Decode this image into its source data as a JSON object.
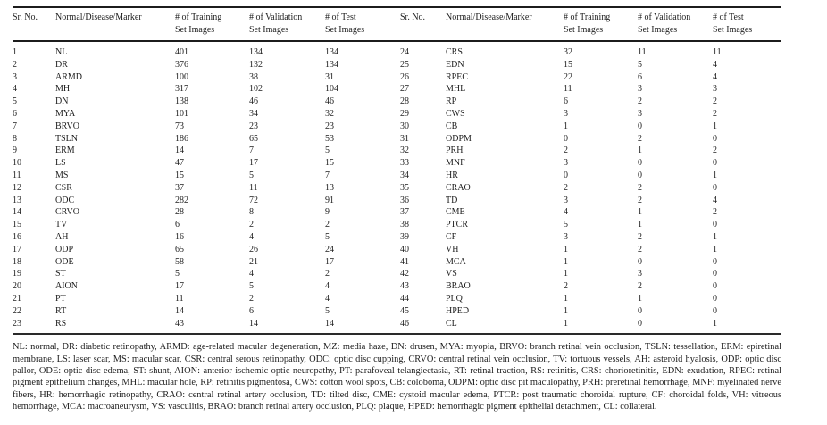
{
  "page": {
    "background_color": "#ffffff",
    "text_color": "#1e1e1e",
    "rule_color": "#1c1c1c"
  },
  "table": {
    "header": {
      "sr": "Sr. No.",
      "marker": "Normal/Disease/Marker",
      "train_line1": "# of Training",
      "train_line2": "Set Images",
      "val_line1": "# of Validation",
      "val_line2": "Set Images",
      "test_line1": "# of Test",
      "test_line2": "Set Images"
    },
    "left_rows": [
      [
        "1",
        "NL",
        "401",
        "134",
        "134"
      ],
      [
        "2",
        "DR",
        "376",
        "132",
        "134"
      ],
      [
        "3",
        "ARMD",
        "100",
        "38",
        "31"
      ],
      [
        "4",
        "MH",
        "317",
        "102",
        "104"
      ],
      [
        "5",
        "DN",
        "138",
        "46",
        "46"
      ],
      [
        "6",
        "MYA",
        "101",
        "34",
        "32"
      ],
      [
        "7",
        "BRVO",
        "73",
        "23",
        "23"
      ],
      [
        "8",
        "TSLN",
        "186",
        "65",
        "53"
      ],
      [
        "9",
        "ERM",
        "14",
        "7",
        "5"
      ],
      [
        "10",
        "LS",
        "47",
        "17",
        "15"
      ],
      [
        "11",
        "MS",
        "15",
        "5",
        "7"
      ],
      [
        "12",
        "CSR",
        "37",
        "11",
        "13"
      ],
      [
        "13",
        "ODC",
        "282",
        "72",
        "91"
      ],
      [
        "14",
        "CRVO",
        "28",
        "8",
        "9"
      ],
      [
        "15",
        "TV",
        "6",
        "2",
        "2"
      ],
      [
        "16",
        "AH",
        "16",
        "4",
        "5"
      ],
      [
        "17",
        "ODP",
        "65",
        "26",
        "24"
      ],
      [
        "18",
        "ODE",
        "58",
        "21",
        "17"
      ],
      [
        "19",
        "ST",
        "5",
        "4",
        "2"
      ],
      [
        "20",
        "AION",
        "17",
        "5",
        "4"
      ],
      [
        "21",
        "PT",
        "11",
        "2",
        "4"
      ],
      [
        "22",
        "RT",
        "14",
        "6",
        "5"
      ],
      [
        "23",
        "RS",
        "43",
        "14",
        "14"
      ]
    ],
    "right_rows": [
      [
        "24",
        "CRS",
        "32",
        "11",
        "11"
      ],
      [
        "25",
        "EDN",
        "15",
        "5",
        "4"
      ],
      [
        "26",
        "RPEC",
        "22",
        "6",
        "4"
      ],
      [
        "27",
        "MHL",
        "11",
        "3",
        "3"
      ],
      [
        "28",
        "RP",
        "6",
        "2",
        "2"
      ],
      [
        "29",
        "CWS",
        "3",
        "3",
        "2"
      ],
      [
        "30",
        "CB",
        "1",
        "0",
        "1"
      ],
      [
        "31",
        "ODPM",
        "0",
        "2",
        "0"
      ],
      [
        "32",
        "PRH",
        "2",
        "1",
        "2"
      ],
      [
        "33",
        "MNF",
        "3",
        "0",
        "0"
      ],
      [
        "34",
        "HR",
        "0",
        "0",
        "1"
      ],
      [
        "35",
        "CRAO",
        "2",
        "2",
        "0"
      ],
      [
        "36",
        "TD",
        "3",
        "2",
        "4"
      ],
      [
        "37",
        "CME",
        "4",
        "1",
        "2"
      ],
      [
        "38",
        "PTCR",
        "5",
        "1",
        "0"
      ],
      [
        "39",
        "CF",
        "3",
        "2",
        "1"
      ],
      [
        "40",
        "VH",
        "1",
        "2",
        "1"
      ],
      [
        "41",
        "MCA",
        "1",
        "0",
        "0"
      ],
      [
        "42",
        "VS",
        "1",
        "3",
        "0"
      ],
      [
        "43",
        "BRAO",
        "2",
        "2",
        "0"
      ],
      [
        "44",
        "PLQ",
        "1",
        "1",
        "0"
      ],
      [
        "45",
        "HPED",
        "1",
        "0",
        "0"
      ],
      [
        "46",
        "CL",
        "1",
        "0",
        "1"
      ]
    ]
  },
  "footnote": "NL: normal, DR: diabetic retinopathy, ARMD: age-related macular degeneration, MZ: media haze, DN: drusen, MYA: myopia, BRVO: branch retinal vein occlusion, TSLN: tessellation, ERM: epiretinal membrane, LS: laser scar, MS: macular scar, CSR: central serous retinopathy, ODC: optic disc cupping, CRVO: central retinal vein occlusion, TV: tortuous vessels, AH: asteroid hyalosis, ODP: optic disc pallor, ODE: optic disc edema, ST: shunt, AION: anterior ischemic optic neuropathy, PT: parafoveal telangiectasia, RT: retinal traction, RS: retinitis, CRS: chorioretinitis, EDN: exudation, RPEC: retinal pigment epithelium changes, MHL: macular hole, RP: retinitis pigmentosa, CWS: cotton wool spots, CB: coloboma, ODPM: optic disc pit maculopathy, PRH: preretinal hemorrhage, MNF: myelinated nerve fibers, HR: hemorrhagic retinopathy, CRAO: central retinal artery occlusion, TD: tilted disc, CME: cystoid macular edema, PTCR: post traumatic choroidal rupture, CF: choroidal folds, VH: vitreous hemorrhage, MCA: macroaneurysm, VS: vasculitis, BRAO: branch retinal artery occlusion, PLQ: plaque, HPED: hemorrhagic pigment epithelial detachment, CL: collateral."
}
